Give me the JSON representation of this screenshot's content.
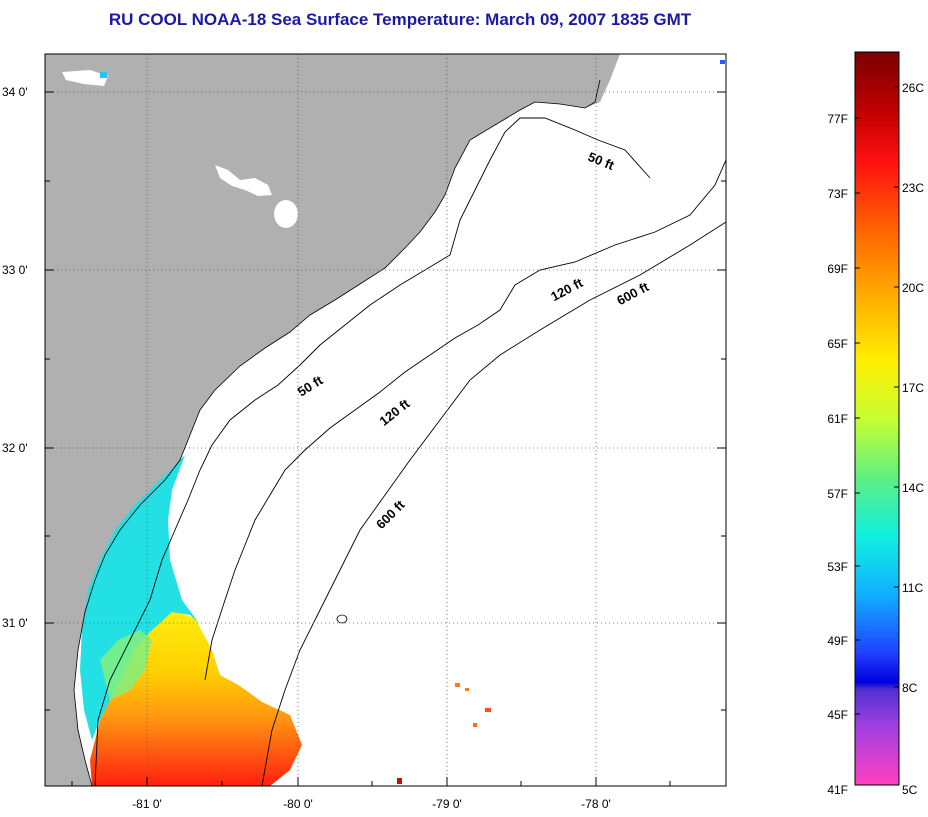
{
  "title": "RU COOL  NOAA-18  Sea Surface Temperature:  March 09, 2007 1835 GMT",
  "map": {
    "lat_labels": [
      "34 0'",
      "33 0'",
      "32 0'",
      "31 0'"
    ],
    "lon_labels": [
      "-81 0'",
      "-80 0'",
      "-79 0'",
      "-78 0'"
    ],
    "grid": "dotted",
    "depth_labels": [
      "50 ft",
      "50 ft",
      "120 ft",
      "120 ft",
      "600 ft",
      "600 ft"
    ]
  },
  "colorbar": {
    "fahrenheit": [
      "77F",
      "73F",
      "69F",
      "65F",
      "61F",
      "57F",
      "53F",
      "49F",
      "45F",
      "41F"
    ],
    "celsius": [
      "26C",
      "23C",
      "20C",
      "17C",
      "14C",
      "11C",
      "8C",
      "5C"
    ]
  },
  "colors": {
    "land": "#b0b0b0",
    "sst_cool": "#20e0e0",
    "sst_warm": "#ffee10",
    "sst_hot": "#ff1010",
    "title": "#1a1aa6"
  }
}
